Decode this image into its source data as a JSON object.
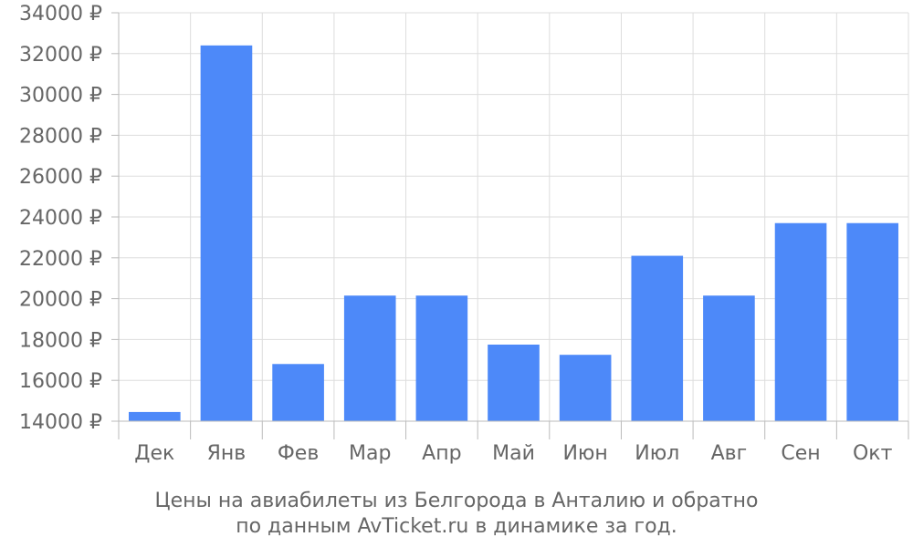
{
  "chart_data": {
    "type": "bar",
    "categories": [
      "Дек",
      "Янв",
      "Фев",
      "Мар",
      "Апр",
      "Май",
      "Июн",
      "Июл",
      "Авг",
      "Сен",
      "Окт"
    ],
    "values": [
      14450,
      32400,
      16800,
      20150,
      20150,
      17750,
      17250,
      22100,
      20150,
      23700,
      23700
    ],
    "ylim": [
      14000,
      34000
    ],
    "yticks": [
      14000,
      16000,
      18000,
      20000,
      22000,
      24000,
      26000,
      28000,
      30000,
      32000,
      34000
    ],
    "y_unit": "₽",
    "grid": true,
    "bar_color": "#4d89f9",
    "caption_lines": [
      "Цены на авиабилеты из Белгорода в Анталию и обратно",
      "по данным AvTicket.ru в динамике за год."
    ]
  }
}
